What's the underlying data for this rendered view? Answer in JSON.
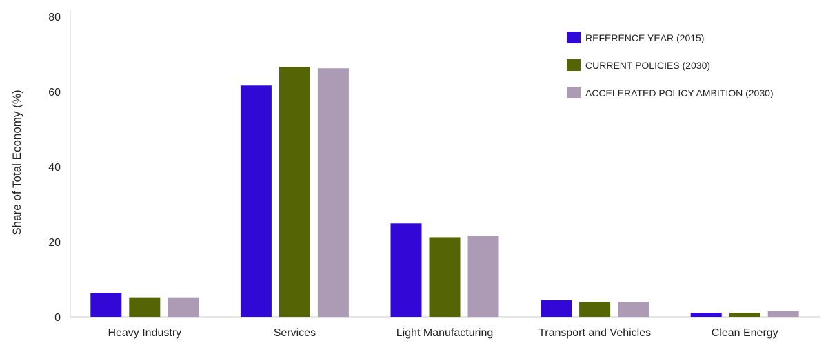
{
  "chart_data": {
    "type": "bar",
    "title": "",
    "xlabel": "",
    "ylabel": "Share of Total Economy (%)",
    "ylim": [
      0,
      80
    ],
    "yticks": [
      0,
      20,
      40,
      60,
      80
    ],
    "grid": false,
    "legend_position": "top-right",
    "categories": [
      "Heavy Industry",
      "Services",
      "Light Manufacturing",
      "Transport and Vehicles",
      "Clean Energy"
    ],
    "series": [
      {
        "name": "REFERENCE YEAR (2015)",
        "color": "#3108d6",
        "values": [
          6.4,
          61.6,
          24.9,
          4.4,
          1.1
        ]
      },
      {
        "name": "CURRENT POLICIES (2030)",
        "color": "#556405",
        "values": [
          5.2,
          66.6,
          21.2,
          4.0,
          1.1
        ]
      },
      {
        "name": "ACCELERATED POLICY AMBITION (2030)",
        "color": "#ad9bb5",
        "values": [
          5.2,
          66.2,
          21.6,
          4.0,
          1.5
        ]
      }
    ]
  }
}
